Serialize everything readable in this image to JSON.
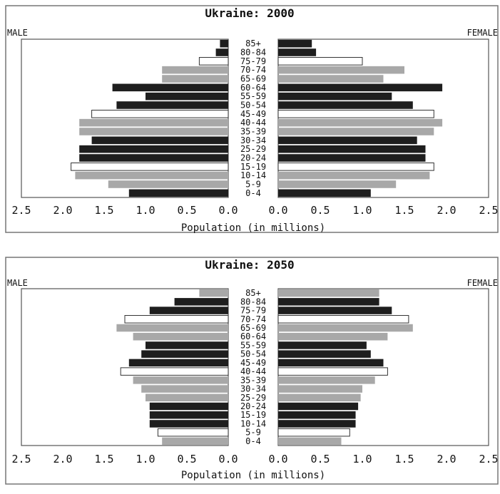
{
  "chart_data": [
    {
      "type": "bar",
      "title": "Ukraine: 2000",
      "left_label": "MALE",
      "right_label": "FEMALE",
      "xlabel": "Population (in millions)",
      "xlim": [
        0,
        2.5
      ],
      "x_ticks": [
        "2.5",
        "2.0",
        "1.5",
        "1.0",
        "0.5",
        "0.0"
      ],
      "x_ticks_right": [
        "0.0",
        "0.5",
        "1.0",
        "1.5",
        "2.0",
        "2.5"
      ],
      "categories": [
        "0-4",
        "5-9",
        "10-14",
        "15-19",
        "20-24",
        "25-29",
        "30-34",
        "35-39",
        "40-44",
        "45-49",
        "50-54",
        "55-59",
        "60-64",
        "65-69",
        "70-74",
        "75-79",
        "80-84",
        "85+"
      ],
      "series": [
        {
          "name": "MALE",
          "values": [
            1.2,
            1.45,
            1.85,
            1.9,
            1.8,
            1.8,
            1.65,
            1.8,
            1.8,
            1.65,
            1.35,
            1.0,
            1.4,
            0.8,
            0.8,
            0.35,
            0.15,
            0.1
          ]
        },
        {
          "name": "FEMALE",
          "values": [
            1.1,
            1.4,
            1.8,
            1.85,
            1.75,
            1.75,
            1.65,
            1.85,
            1.95,
            1.85,
            1.6,
            1.35,
            1.95,
            1.25,
            1.5,
            1.0,
            0.45,
            0.4
          ]
        }
      ],
      "bar_colors": [
        "#1e1e1e",
        "#a8a8a8",
        "#a8a8a8",
        "#ffffff",
        "#1e1e1e",
        "#1e1e1e",
        "#1e1e1e",
        "#a8a8a8",
        "#a8a8a8",
        "#ffffff",
        "#1e1e1e",
        "#1e1e1e",
        "#1e1e1e",
        "#a8a8a8",
        "#a8a8a8",
        "#ffffff",
        "#1e1e1e",
        "#1e1e1e"
      ]
    },
    {
      "type": "bar",
      "title": "Ukraine: 2050",
      "left_label": "MALE",
      "right_label": "FEMALE",
      "xlabel": "Population (in millions)",
      "xlim": [
        0,
        2.5
      ],
      "x_ticks": [
        "2.5",
        "2.0",
        "1.5",
        "1.0",
        "0.5",
        "0.0"
      ],
      "x_ticks_right": [
        "0.0",
        "0.5",
        "1.0",
        "1.5",
        "2.0",
        "2.5"
      ],
      "categories": [
        "0-4",
        "5-9",
        "10-14",
        "15-19",
        "20-24",
        "25-29",
        "30-34",
        "35-39",
        "40-44",
        "45-49",
        "50-54",
        "55-59",
        "60-64",
        "65-69",
        "70-74",
        "75-79",
        "80-84",
        "85+"
      ],
      "series": [
        {
          "name": "MALE",
          "values": [
            0.8,
            0.85,
            0.95,
            0.95,
            0.95,
            1.0,
            1.05,
            1.15,
            1.3,
            1.2,
            1.05,
            1.0,
            1.15,
            1.35,
            1.25,
            0.95,
            0.65,
            0.35
          ]
        },
        {
          "name": "FEMALE",
          "values": [
            0.75,
            0.85,
            0.92,
            0.92,
            0.95,
            0.98,
            1.0,
            1.15,
            1.3,
            1.25,
            1.1,
            1.05,
            1.3,
            1.6,
            1.55,
            1.35,
            1.2,
            1.2
          ]
        }
      ],
      "bar_colors": [
        "#a8a8a8",
        "#ffffff",
        "#1e1e1e",
        "#1e1e1e",
        "#1e1e1e",
        "#a8a8a8",
        "#a8a8a8",
        "#a8a8a8",
        "#ffffff",
        "#1e1e1e",
        "#1e1e1e",
        "#1e1e1e",
        "#a8a8a8",
        "#a8a8a8",
        "#ffffff",
        "#1e1e1e",
        "#1e1e1e",
        "#a8a8a8"
      ]
    }
  ]
}
